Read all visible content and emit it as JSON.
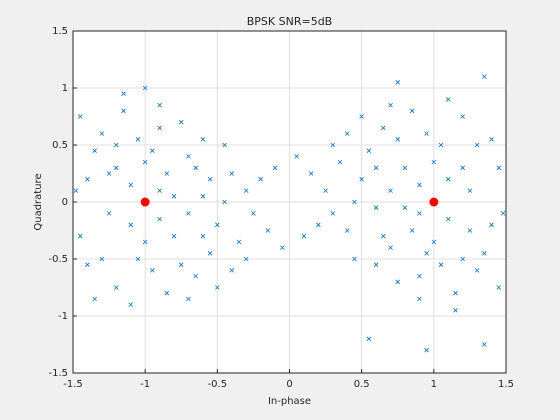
{
  "chart_data": {
    "type": "scatter",
    "title": "BPSK SNR=5dB",
    "x_label": "In-phase",
    "y_label": "Quadrature",
    "xlim": [
      -1.5,
      1.5
    ],
    "ylim": [
      -1.5,
      1.5
    ],
    "xticks": [
      -1.5,
      -1,
      -0.5,
      0,
      0.5,
      1,
      1.5
    ],
    "yticks": [
      -1.5,
      -1,
      -0.5,
      0,
      0.5,
      1,
      1.5
    ],
    "grid": true,
    "series": [
      {
        "color": "#0072bd",
        "marker": "x",
        "x": [
          -1.2,
          -0.9,
          -1.1,
          -0.7,
          -1.3,
          -0.8,
          -1.05,
          -0.6,
          -1.4,
          -0.95,
          -1.15,
          -0.5,
          -1.25,
          -0.85,
          -0.75,
          -1.35,
          -1.0,
          -0.65,
          -0.45,
          -1.2,
          -0.9,
          -0.55,
          -1.45,
          -1.1,
          -0.8,
          -0.3,
          -0.4,
          -1.3,
          -0.7,
          -1.0,
          -0.6,
          -0.2,
          -1.05,
          -0.35,
          -1.4,
          -0.9,
          -1.15,
          -0.75,
          -0.5,
          -0.25,
          -0.95,
          -1.25,
          -0.15,
          -0.6,
          -1.45,
          -0.85,
          -0.1,
          -1.0,
          -0.4,
          -0.7,
          -1.35,
          -1.48,
          -0.05,
          -0.9,
          -0.3,
          -1.2,
          -0.65,
          -1.1,
          -0.45,
          -0.55,
          1.2,
          0.9,
          1.1,
          0.7,
          1.3,
          0.8,
          1.05,
          0.6,
          1.4,
          0.95,
          1.15,
          0.5,
          1.25,
          0.85,
          0.75,
          1.35,
          1.0,
          0.65,
          0.45,
          1.2,
          0.9,
          0.55,
          1.45,
          1.1,
          0.8,
          0.3,
          0.4,
          1.3,
          0.7,
          1.0,
          0.6,
          0.2,
          1.05,
          0.35,
          1.4,
          0.9,
          1.15,
          0.75,
          0.5,
          0.25,
          0.95,
          1.25,
          0.15,
          0.6,
          1.45,
          0.85,
          0.1,
          1.35,
          0.4,
          0.7,
          0.95,
          1.48,
          0.05,
          0.9,
          0.3,
          1.2,
          0.65,
          1.1,
          0.45,
          0.55,
          0.75,
          1.35
        ],
        "y": [
          0.3,
          0.1,
          -0.2,
          0.4,
          -0.5,
          -0.3,
          0.55,
          0.05,
          0.2,
          -0.6,
          0.8,
          -0.2,
          -0.1,
          0.25,
          -0.55,
          0.45,
          -0.35,
          0.3,
          0.5,
          -0.75,
          0.65,
          -0.45,
          -0.3,
          0.15,
          0.05,
          0.1,
          -0.6,
          0.6,
          -0.1,
          0.35,
          0.55,
          0.2,
          -0.5,
          -0.35,
          -0.55,
          -0.15,
          0.95,
          0.7,
          -0.75,
          -0.1,
          0.45,
          0.25,
          -0.25,
          -0.3,
          0.75,
          -0.8,
          0.3,
          1.0,
          0.25,
          -0.85,
          -0.85,
          0.1,
          -0.4,
          0.85,
          -0.5,
          0.5,
          -0.65,
          -0.9,
          0.0,
          0.2,
          0.3,
          -0.1,
          0.2,
          -0.4,
          0.5,
          0.3,
          -0.55,
          -0.05,
          -0.2,
          0.6,
          -0.8,
          0.2,
          0.1,
          -0.25,
          0.55,
          -0.45,
          0.35,
          -0.3,
          -0.5,
          0.75,
          -0.65,
          0.45,
          0.3,
          -0.15,
          -0.05,
          -0.1,
          0.6,
          -0.6,
          0.1,
          -0.35,
          -0.55,
          -0.2,
          0.5,
          0.35,
          0.55,
          0.15,
          -0.95,
          -0.7,
          0.75,
          0.1,
          -0.45,
          -0.25,
          0.25,
          0.3,
          -0.75,
          0.8,
          -0.3,
          1.1,
          -0.25,
          0.85,
          -1.3,
          -0.1,
          0.4,
          -0.85,
          0.5,
          -0.5,
          0.65,
          0.9,
          0.0,
          -1.2,
          1.05,
          -1.25
        ]
      },
      {
        "color": "#ff0000",
        "marker": "o",
        "x": [
          -1,
          1
        ],
        "y": [
          0,
          0
        ]
      }
    ]
  }
}
